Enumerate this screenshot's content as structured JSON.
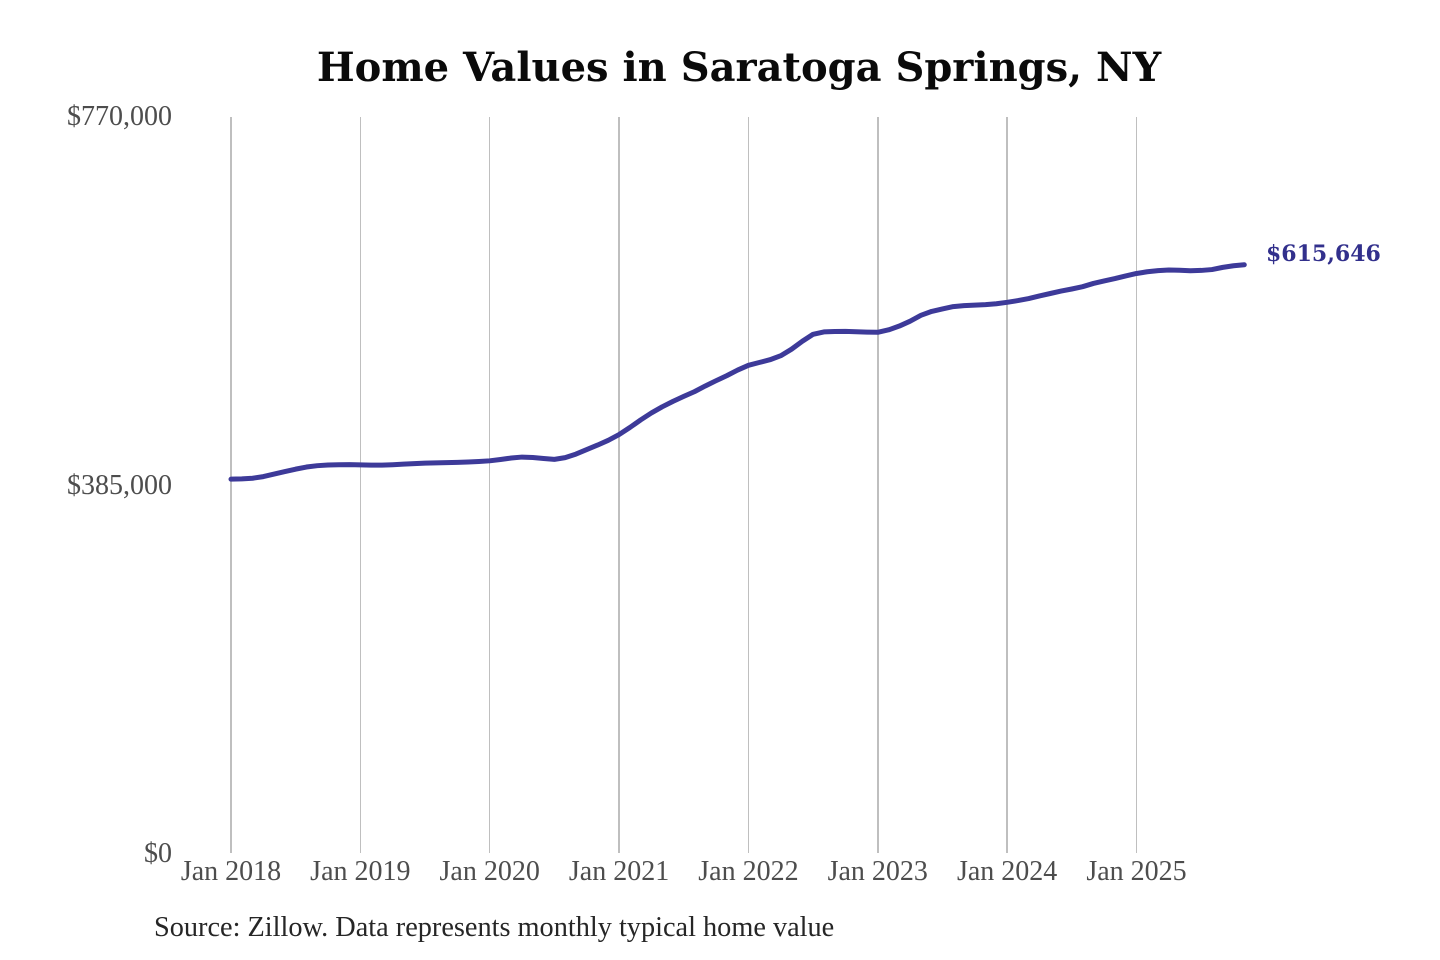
{
  "chart_data": {
    "type": "line",
    "title": "Home Values in Saratoga Springs, NY",
    "source_note": "Source: Zillow. Data represents monthly typical home value",
    "series_name": "Monthly typical home value",
    "end_label": "$615,646",
    "last_value": 615646,
    "ylim": [
      0,
      770000
    ],
    "grid": "vertical-only",
    "legend": "none",
    "line_color": "#3d3a99",
    "end_label_color": "#32308c",
    "y_ticks": [
      {
        "label": "$770,000",
        "value": 770000
      },
      {
        "label": "$385,000",
        "value": 385000
      },
      {
        "label": "$0",
        "value": 0
      }
    ],
    "x_ticks": [
      {
        "label": "Jan 2018",
        "month_index": 0
      },
      {
        "label": "Jan 2019",
        "month_index": 12
      },
      {
        "label": "Jan 2020",
        "month_index": 24
      },
      {
        "label": "Jan 2021",
        "month_index": 36
      },
      {
        "label": "Jan 2022",
        "month_index": 48
      },
      {
        "label": "Jan 2023",
        "month_index": 60
      },
      {
        "label": "Jan 2024",
        "month_index": 72
      },
      {
        "label": "Jan 2025",
        "month_index": 84
      }
    ],
    "x": [
      "Jan 2018",
      "Feb 2018",
      "Mar 2018",
      "Apr 2018",
      "May 2018",
      "Jun 2018",
      "Jul 2018",
      "Aug 2018",
      "Sep 2018",
      "Oct 2018",
      "Nov 2018",
      "Dec 2018",
      "Jan 2019",
      "Feb 2019",
      "Mar 2019",
      "Apr 2019",
      "May 2019",
      "Jun 2019",
      "Jul 2019",
      "Aug 2019",
      "Sep 2019",
      "Oct 2019",
      "Nov 2019",
      "Dec 2019",
      "Jan 2020",
      "Feb 2020",
      "Mar 2020",
      "Apr 2020",
      "May 2020",
      "Jun 2020",
      "Jul 2020",
      "Aug 2020",
      "Sep 2020",
      "Oct 2020",
      "Nov 2020",
      "Dec 2020",
      "Jan 2021",
      "Feb 2021",
      "Mar 2021",
      "Apr 2021",
      "May 2021",
      "Jun 2021",
      "Jul 2021",
      "Aug 2021",
      "Sep 2021",
      "Oct 2021",
      "Nov 2021",
      "Dec 2021",
      "Jan 2022",
      "Feb 2022",
      "Mar 2022",
      "Apr 2022",
      "May 2022",
      "Jun 2022",
      "Jul 2022",
      "Aug 2022",
      "Sep 2022",
      "Oct 2022",
      "Nov 2022",
      "Dec 2022",
      "Jan 2023",
      "Feb 2023",
      "Mar 2023",
      "Apr 2023",
      "May 2023",
      "Jun 2023",
      "Jul 2023",
      "Aug 2023",
      "Sep 2023",
      "Oct 2023",
      "Nov 2023",
      "Dec 2023",
      "Jan 2024",
      "Feb 2024",
      "Mar 2024",
      "Apr 2024",
      "May 2024",
      "Jun 2024",
      "Jul 2024",
      "Aug 2024",
      "Sep 2024",
      "Oct 2024",
      "Nov 2024",
      "Dec 2024",
      "Jan 2025",
      "Feb 2025",
      "Mar 2025",
      "Apr 2025",
      "May 2025",
      "Jun 2025",
      "Jul 2025",
      "Aug 2025",
      "Sep 2025",
      "Oct 2025",
      "Nov 2025"
    ],
    "values": [
      391600,
      391900,
      392600,
      394300,
      396900,
      399500,
      402100,
      404300,
      405700,
      406400,
      406700,
      406800,
      406600,
      406300,
      406300,
      406700,
      407300,
      407900,
      408400,
      408700,
      408900,
      409100,
      409500,
      410100,
      410800,
      412200,
      413700,
      414700,
      414200,
      413200,
      412300,
      414100,
      417800,
      422500,
      427200,
      432200,
      438200,
      445600,
      453500,
      460800,
      467200,
      472900,
      478100,
      483100,
      489000,
      494500,
      499800,
      505600,
      510600,
      513500,
      516400,
      520600,
      527400,
      535700,
      543000,
      545500,
      545900,
      546000,
      545700,
      545300,
      545100,
      547600,
      551600,
      556700,
      562800,
      566900,
      569500,
      571900,
      572900,
      573400,
      574000,
      574900,
      576400,
      578200,
      580300,
      583100,
      585600,
      588100,
      590300,
      592700,
      596100,
      598700,
      601200,
      604000,
      606500,
      608300,
      609500,
      610200,
      609900,
      609400,
      609700,
      610600,
      612900,
      614600,
      615646
    ]
  }
}
